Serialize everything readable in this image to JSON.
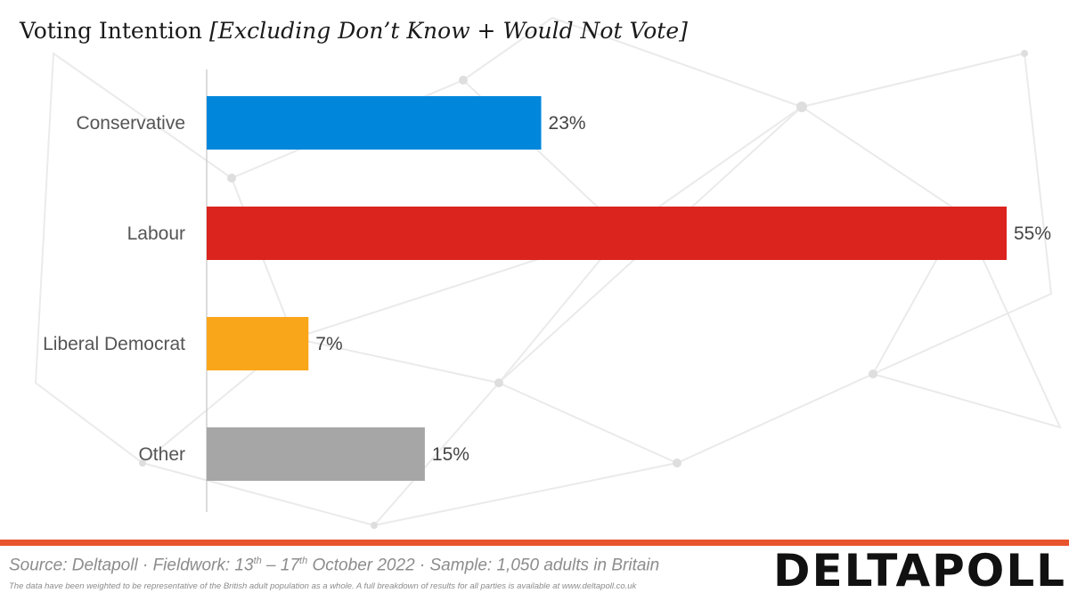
{
  "title": {
    "main": "Voting Intention",
    "subtitle": "[Excluding Don’t Know + Would Not Vote]"
  },
  "chart_data": {
    "type": "bar",
    "orientation": "horizontal",
    "categories": [
      "Conservative",
      "Labour",
      "Liberal Democrat",
      "Other"
    ],
    "values": [
      23,
      55,
      7,
      15
    ],
    "value_labels": [
      "23%",
      "55%",
      "7%",
      "15%"
    ],
    "colors": [
      "#0087DC",
      "#DC241F",
      "#FAA61A",
      "#A6A6A6"
    ],
    "xlim": [
      0,
      56
    ],
    "grid": false,
    "legend": "none"
  },
  "footer": {
    "source_prefix": "Source: Deltapoll · Fieldwork: 13",
    "source_sup1": "th",
    "source_mid": " – 17",
    "source_sup2": "th",
    "source_suffix": " October 2022 · Sample: 1,050 adults in Britain",
    "note": "The data have been weighted to be representative of the British adult population as a whole. A full breakdown of results for all parties is available at www.deltapoll.co.uk",
    "logo_text": "DELTAPOLL",
    "rule_color": "#E8552D"
  }
}
